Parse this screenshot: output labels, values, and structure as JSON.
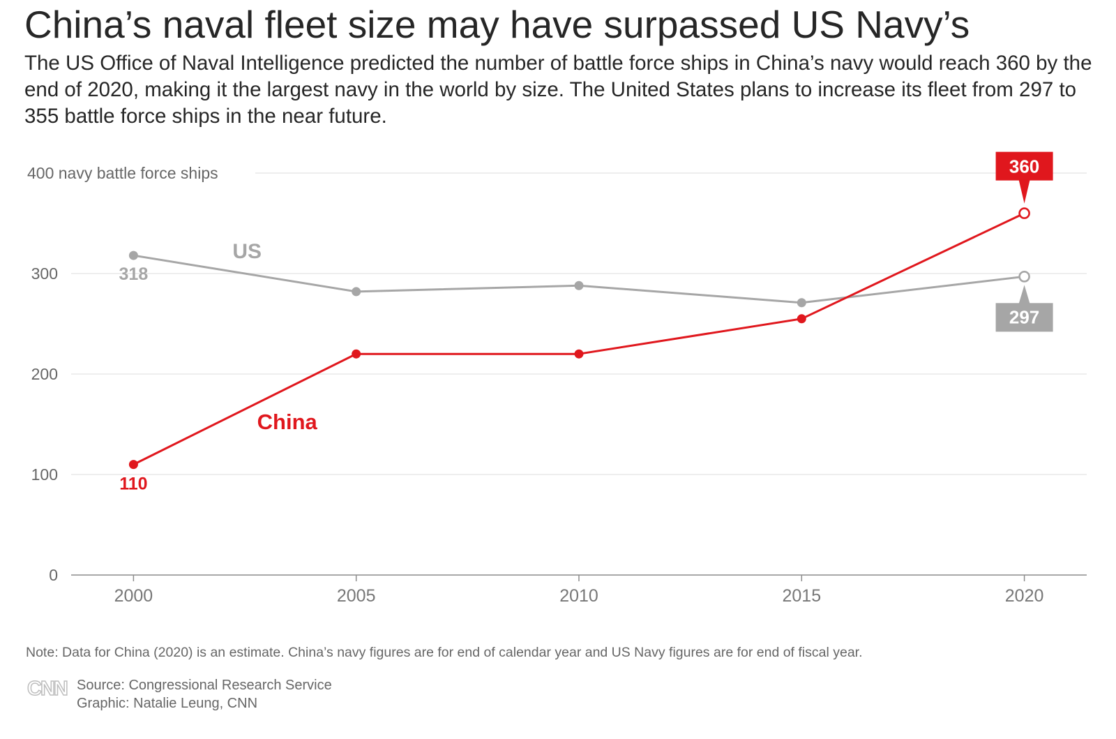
{
  "header": {
    "title": "China’s naval fleet size may have surpassed US Navy’s",
    "subtitle": "The US Office of Naval Intelligence predicted the number of battle force ships in China’s navy would reach 360 by the end of 2020, making it the largest navy in the world by size. The United States plans to increase its fleet from 297 to 355 battle force ships in the near future."
  },
  "chart_data": {
    "type": "line",
    "title": "China’s naval fleet size may have surpassed US Navy’s",
    "ylabel": "400 navy battle force ships",
    "xlabel": "",
    "x": [
      2000,
      2005,
      2010,
      2015,
      2020
    ],
    "xlim": [
      1998.6,
      2021.4
    ],
    "ylim": [
      0,
      400
    ],
    "yticks": [
      0,
      100,
      200,
      300,
      400
    ],
    "ytick_labels": [
      "0",
      "100",
      "200",
      "300",
      "400 navy battle force ships"
    ],
    "xtick_labels": [
      "2000",
      "2005",
      "2010",
      "2015",
      "2020"
    ],
    "grid": true,
    "series": [
      {
        "name": "US",
        "color": "#a6a6a6",
        "values": [
          318,
          282,
          288,
          271,
          297
        ],
        "start_label": "318",
        "end_label": "297"
      },
      {
        "name": "China",
        "color": "#e0171d",
        "values": [
          110,
          220,
          220,
          255,
          360
        ],
        "start_label": "110",
        "end_label": "360"
      }
    ],
    "annotations": [
      "Data for China (2020) is an estimate (open marker)"
    ]
  },
  "footer": {
    "note": "Note: Data for China (2020) is an estimate. China’s navy figures are for end of calendar year and US Navy figures are for end of fiscal year.",
    "logo": "CNN",
    "source": "Source: Congressional Research Service",
    "graphic": "Graphic: Natalie Leung, CNN"
  }
}
